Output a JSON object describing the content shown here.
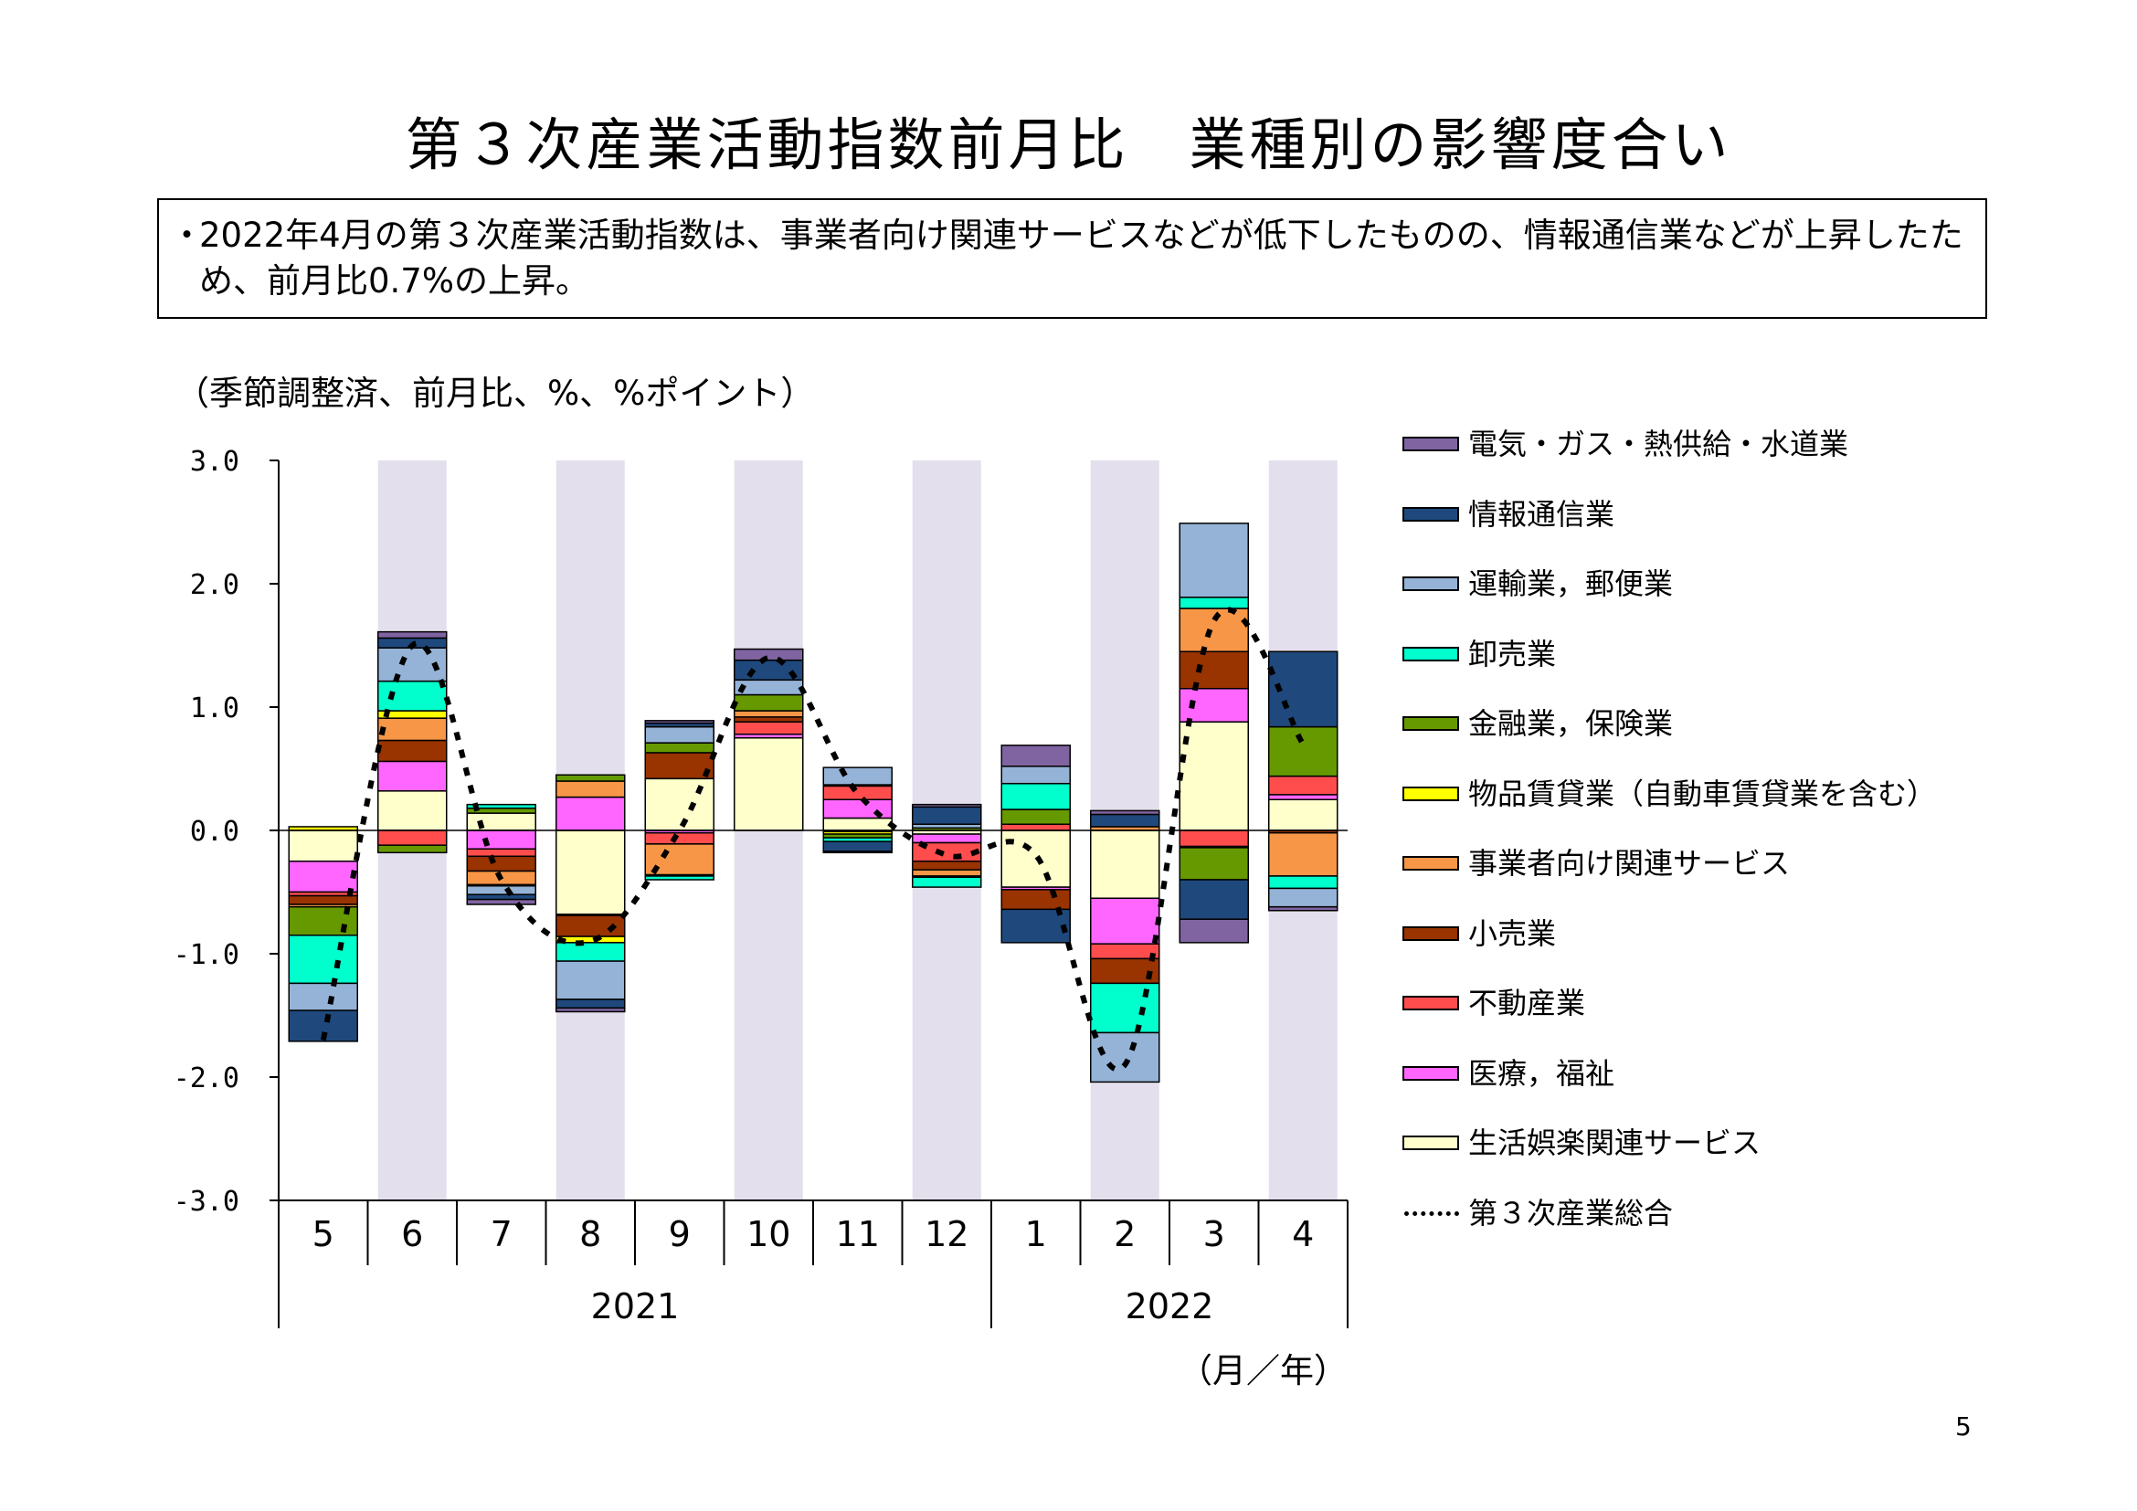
{
  "title": "第３次産業活動指数前月比　業種別の影響度合い",
  "summary": {
    "bullet": "・",
    "text": "2022年4月の第３次産業活動指数は、事業者向け関連サービスなどが低下したものの、情報通信業などが上昇したため、前月比0.7%の上昇。"
  },
  "unit_label": "（季節調整済、前月比、%、%ポイント）",
  "x_unit_label": "（月／年）",
  "page_number": "5",
  "chart_data": {
    "type": "bar",
    "stacked": true,
    "categories": [
      "5",
      "6",
      "7",
      "8",
      "9",
      "10",
      "11",
      "12",
      "1",
      "2",
      "3",
      "4"
    ],
    "year_groups": [
      {
        "label": "2021",
        "count": 8
      },
      {
        "label": "2022",
        "count": 4
      }
    ],
    "ylim": [
      -3.0,
      3.0
    ],
    "yticks": [
      "3.0",
      "2.0",
      "1.0",
      "0.0",
      "-1.0",
      "-2.0",
      "-3.0"
    ],
    "ytick_values": [
      3,
      2,
      1,
      0,
      -1,
      -2,
      -3
    ],
    "shaded_categories": [
      "6",
      "8",
      "10",
      "12",
      "2",
      "4"
    ],
    "shade_color": "#e4dfec",
    "series": [
      {
        "name": "生活娯楽関連サービス",
        "color": "#ffffcc",
        "values": [
          -0.25,
          0.32,
          0.14,
          -0.68,
          0.42,
          0.75,
          0.1,
          -0.03,
          -0.46,
          -0.55,
          0.88,
          0.25
        ]
      },
      {
        "name": "医療，福祉",
        "color": "#ff66ff",
        "values": [
          -0.25,
          0.24,
          -0.15,
          0.27,
          -0.02,
          0.03,
          0.15,
          -0.07,
          -0.02,
          -0.37,
          0.27,
          0.04
        ]
      },
      {
        "name": "不動産業",
        "color": "#ff4d4d",
        "values": [
          -0.03,
          -0.12,
          -0.06,
          -0.01,
          -0.09,
          0.1,
          0.11,
          -0.15,
          0.05,
          -0.12,
          -0.13,
          0.15
        ]
      },
      {
        "name": "小売業",
        "color": "#993300",
        "values": [
          -0.07,
          0.17,
          -0.12,
          -0.17,
          0.21,
          0.04,
          -0.01,
          -0.07,
          -0.16,
          -0.2,
          0.3,
          -0.02
        ]
      },
      {
        "name": "事業者向け関連サービス",
        "color": "#f79646",
        "values": [
          -0.02,
          0.18,
          -0.11,
          0.13,
          -0.25,
          0.05,
          0.01,
          -0.05,
          0.0,
          0.03,
          0.35,
          -0.35
        ]
      },
      {
        "name": "物品賃貸業（自動車賃貸業を含む）",
        "color": "#ffff00",
        "values": [
          0.03,
          0.06,
          -0.01,
          -0.05,
          -0.01,
          0.0,
          -0.02,
          -0.01,
          0.0,
          0.0,
          -0.01,
          0.0
        ]
      },
      {
        "name": "金融業，保険業",
        "color": "#669900",
        "values": [
          -0.23,
          -0.06,
          0.04,
          0.05,
          0.08,
          0.13,
          -0.03,
          0.02,
          0.12,
          0.0,
          -0.26,
          0.4
        ]
      },
      {
        "name": "卸売業",
        "color": "#00ffcc",
        "values": [
          -0.39,
          0.24,
          0.03,
          -0.15,
          -0.03,
          0.0,
          -0.03,
          -0.08,
          0.21,
          -0.4,
          0.09,
          -0.1
        ]
      },
      {
        "name": "運輸業，郵便業",
        "color": "#95b3d7",
        "values": [
          -0.22,
          0.27,
          -0.07,
          -0.31,
          0.13,
          0.12,
          0.14,
          0.03,
          0.14,
          -0.4,
          0.6,
          -0.15
        ]
      },
      {
        "name": "情報通信業",
        "color": "#1f497d",
        "values": [
          -0.25,
          0.08,
          -0.04,
          -0.07,
          0.03,
          0.16,
          -0.08,
          0.14,
          -0.27,
          0.1,
          -0.32,
          0.61
        ]
      },
      {
        "name": "電気・ガス・熱供給・水道業",
        "color": "#8064a2",
        "values": [
          0.0,
          0.05,
          -0.04,
          -0.03,
          0.02,
          0.09,
          -0.01,
          0.02,
          0.17,
          0.03,
          -0.19,
          -0.03
        ]
      }
    ],
    "total": {
      "name": "第３次産業総合",
      "values": [
        -1.7,
        1.5,
        -0.4,
        -0.9,
        0.0,
        1.4,
        0.3,
        -0.2,
        -0.2,
        -1.9,
        1.7,
        0.7
      ]
    },
    "legend_order": [
      "電気・ガス・熱供給・水道業",
      "情報通信業",
      "運輸業，郵便業",
      "卸売業",
      "金融業，保険業",
      "物品賃貸業（自動車賃貸業を含む）",
      "事業者向け関連サービス",
      "小売業",
      "不動産業",
      "医療，福祉",
      "生活娯楽関連サービス",
      "第３次産業総合"
    ],
    "legend_position": "right"
  }
}
